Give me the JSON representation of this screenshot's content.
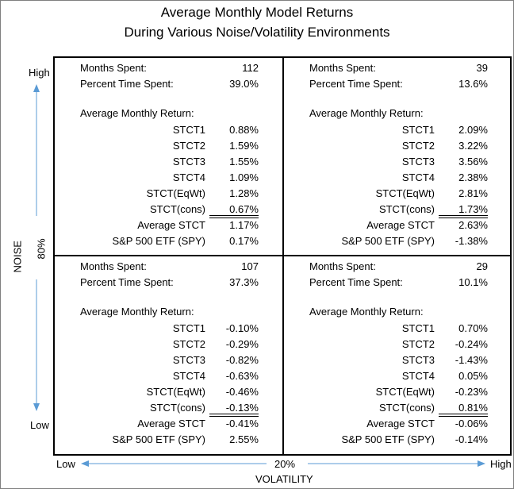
{
  "chart_data": {
    "type": "table",
    "title": "Average Monthly Model Returns",
    "subtitle": "During Various Noise/Volatility Environments",
    "y_axis": {
      "label": "NOISE",
      "high": "High",
      "low": "Low",
      "threshold": "80%"
    },
    "x_axis": {
      "label": "VOLATILITY",
      "high": "High",
      "low": "Low",
      "threshold": "20%"
    },
    "labels": {
      "months_spent": "Months Spent:",
      "percent_time": "Percent Time Spent:",
      "avg_return": "Average Monthly Return:",
      "rows": [
        "STCT1",
        "STCT2",
        "STCT3",
        "STCT4",
        "STCT(EqWt)",
        "STCT(cons)",
        "Average STCT",
        "S&P 500 ETF (SPY)"
      ]
    },
    "quadrants": [
      {
        "noise": "High",
        "volatility": "Low",
        "months": "112",
        "percent": "39.0%",
        "values": [
          "0.88%",
          "1.59%",
          "1.55%",
          "1.09%",
          "1.28%",
          "0.67%",
          "1.17%",
          "0.17%"
        ]
      },
      {
        "noise": "High",
        "volatility": "High",
        "months": "39",
        "percent": "13.6%",
        "values": [
          "2.09%",
          "3.22%",
          "3.56%",
          "2.38%",
          "2.81%",
          "1.73%",
          "2.63%",
          "-1.38%"
        ]
      },
      {
        "noise": "Low",
        "volatility": "Low",
        "months": "107",
        "percent": "37.3%",
        "values": [
          "-0.10%",
          "-0.29%",
          "-0.82%",
          "-0.63%",
          "-0.46%",
          "-0.13%",
          "-0.41%",
          "2.55%"
        ]
      },
      {
        "noise": "Low",
        "volatility": "High",
        "months": "29",
        "percent": "10.1%",
        "values": [
          "0.70%",
          "-0.24%",
          "-1.43%",
          "0.05%",
          "-0.23%",
          "0.81%",
          "-0.06%",
          "-0.14%"
        ]
      }
    ]
  }
}
